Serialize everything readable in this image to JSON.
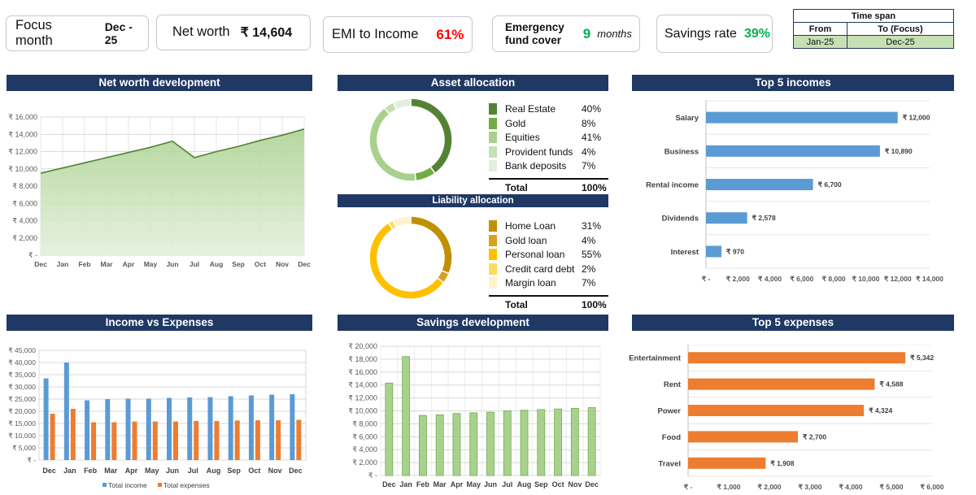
{
  "kpis": {
    "focus_month": {
      "label": "Focus month",
      "value": "Dec - 25"
    },
    "net_worth": {
      "label": "Net worth",
      "value": "₹ 14,604"
    },
    "emi": {
      "label": "EMI to Income",
      "value": "61%"
    },
    "emergency": {
      "label_line1": "Emergency",
      "label_line2": "fund cover",
      "value": "9",
      "unit": "months"
    },
    "savings_rate": {
      "label": "Savings rate",
      "value": "39%"
    }
  },
  "timespan": {
    "title": "Time span",
    "from_label": "From",
    "to_label": "To (Focus)",
    "from": "Jan-25",
    "to": "Dec-25"
  },
  "titles": {
    "net_worth_dev": "Net worth development",
    "asset_alloc": "Asset allocation",
    "liability_alloc": "Liability allocation",
    "top_incomes": "Top 5 incomes",
    "income_vs_exp": "Income vs Expenses",
    "savings_dev": "Savings development",
    "top_expenses": "Top 5 expenses"
  },
  "colors": {
    "header": "#1f3864",
    "green": "#00b050",
    "red": "#ff0000",
    "blue": "#5b9bd5",
    "orange": "#ed7d31"
  },
  "chart_data": [
    {
      "id": "net_worth",
      "type": "area",
      "title": "Net worth development",
      "categories": [
        "Dec",
        "Jan",
        "Feb",
        "Mar",
        "Apr",
        "May",
        "Jun",
        "Jul",
        "Aug",
        "Sep",
        "Oct",
        "Nov",
        "Dec"
      ],
      "values": [
        9500,
        10100,
        10700,
        11300,
        11900,
        12500,
        13200,
        11300,
        12000,
        12600,
        13300,
        13900,
        14604
      ],
      "ylim": [
        0,
        16000
      ],
      "yticks": [
        "₹ -",
        "₹ 2,000",
        "₹ 4,000",
        "₹ 6,000",
        "₹ 8,000",
        "₹ 10,000",
        "₹ 12,000",
        "₹ 14,000",
        "₹ 16,000"
      ]
    },
    {
      "id": "assets",
      "type": "pie",
      "title": "Asset allocation",
      "labels": [
        "Real Estate",
        "Gold",
        "Equities",
        "Provident funds",
        "Bank deposits"
      ],
      "values": [
        "40%",
        "8%",
        "41%",
        "4%",
        "7%"
      ],
      "colors": [
        "#548235",
        "#70ad47",
        "#a9d18e",
        "#c5e0b4",
        "#e2efda"
      ],
      "total_label": "Total",
      "total_value": "100%"
    },
    {
      "id": "liabilities",
      "type": "pie",
      "title": "Liability allocation",
      "labels": [
        "Home Loan",
        "Gold loan",
        "Personal loan",
        "Credit card debt",
        "Margin loan"
      ],
      "values": [
        "31%",
        "4%",
        "55%",
        "2%",
        "7%"
      ],
      "colors": [
        "#bf9000",
        "#d6a11f",
        "#ffc000",
        "#ffd966",
        "#fff2cc"
      ],
      "total_label": "Total",
      "total_value": "100%"
    },
    {
      "id": "top_incomes",
      "type": "bar",
      "title": "Top 5 incomes",
      "categories": [
        "Salary",
        "Business",
        "Rental income",
        "Dividends",
        "Interest"
      ],
      "values": [
        12000,
        10890,
        6700,
        2578,
        970
      ],
      "labels": [
        "₹ 12,000",
        "₹ 10,890",
        "₹ 6,700",
        "₹ 2,578",
        "₹ 970"
      ],
      "xlim": [
        0,
        14000
      ],
      "xticks": [
        "₹ -",
        "₹ 2,000",
        "₹ 4,000",
        "₹ 6,000",
        "₹ 8,000",
        "₹ 10,000",
        "₹ 12,000",
        "₹ 14,000"
      ]
    },
    {
      "id": "income_vs_expenses",
      "type": "bar",
      "title": "Income vs Expenses",
      "categories": [
        "Dec",
        "Jan",
        "Feb",
        "Mar",
        "Apr",
        "May",
        "Jun",
        "Jul",
        "Aug",
        "Sep",
        "Oct",
        "Nov",
        "Dec"
      ],
      "series": [
        {
          "name": "Total income",
          "values": [
            33500,
            40000,
            24500,
            25000,
            25200,
            25200,
            25500,
            25700,
            25800,
            26200,
            26500,
            26800,
            27000
          ]
        },
        {
          "name": "Total expenses",
          "values": [
            19000,
            21000,
            15500,
            15500,
            15800,
            15800,
            15800,
            16000,
            16000,
            16200,
            16300,
            16300,
            16500
          ]
        }
      ],
      "ylim": [
        0,
        45000
      ],
      "yticks": [
        "₹ -",
        "₹ 5,000",
        "₹ 10,000",
        "₹ 15,000",
        "₹ 20,000",
        "₹ 25,000",
        "₹ 30,000",
        "₹ 35,000",
        "₹ 40,000",
        "₹ 45,000"
      ]
    },
    {
      "id": "savings",
      "type": "bar",
      "title": "Savings development",
      "categories": [
        "Dec",
        "Jan",
        "Feb",
        "Mar",
        "Apr",
        "May",
        "Jun",
        "Jul",
        "Aug",
        "Sep",
        "Oct",
        "Nov",
        "Dec"
      ],
      "values": [
        14300,
        18400,
        9300,
        9400,
        9600,
        9700,
        9800,
        10000,
        10100,
        10200,
        10300,
        10400,
        10500
      ],
      "ylim": [
        0,
        20000
      ],
      "yticks": [
        "₹ -",
        "₹ 2,000",
        "₹ 4,000",
        "₹ 6,000",
        "₹ 8,000",
        "₹ 10,000",
        "₹ 12,000",
        "₹ 14,000",
        "₹ 16,000",
        "₹ 18,000",
        "₹ 20,000"
      ]
    },
    {
      "id": "top_expenses",
      "type": "bar",
      "title": "Top 5 expenses",
      "categories": [
        "Entertainment",
        "Rent",
        "Power",
        "Food",
        "Travel"
      ],
      "values": [
        5342,
        4588,
        4324,
        2700,
        1908
      ],
      "labels": [
        "₹ 5,342",
        "₹ 4,588",
        "₹ 4,324",
        "₹ 2,700",
        "₹ 1,908"
      ],
      "xlim": [
        0,
        6000
      ],
      "xticks": [
        "₹ -",
        "₹ 1,000",
        "₹ 2,000",
        "₹ 3,000",
        "₹ 4,000",
        "₹ 5,000",
        "₹ 6,000"
      ]
    }
  ]
}
